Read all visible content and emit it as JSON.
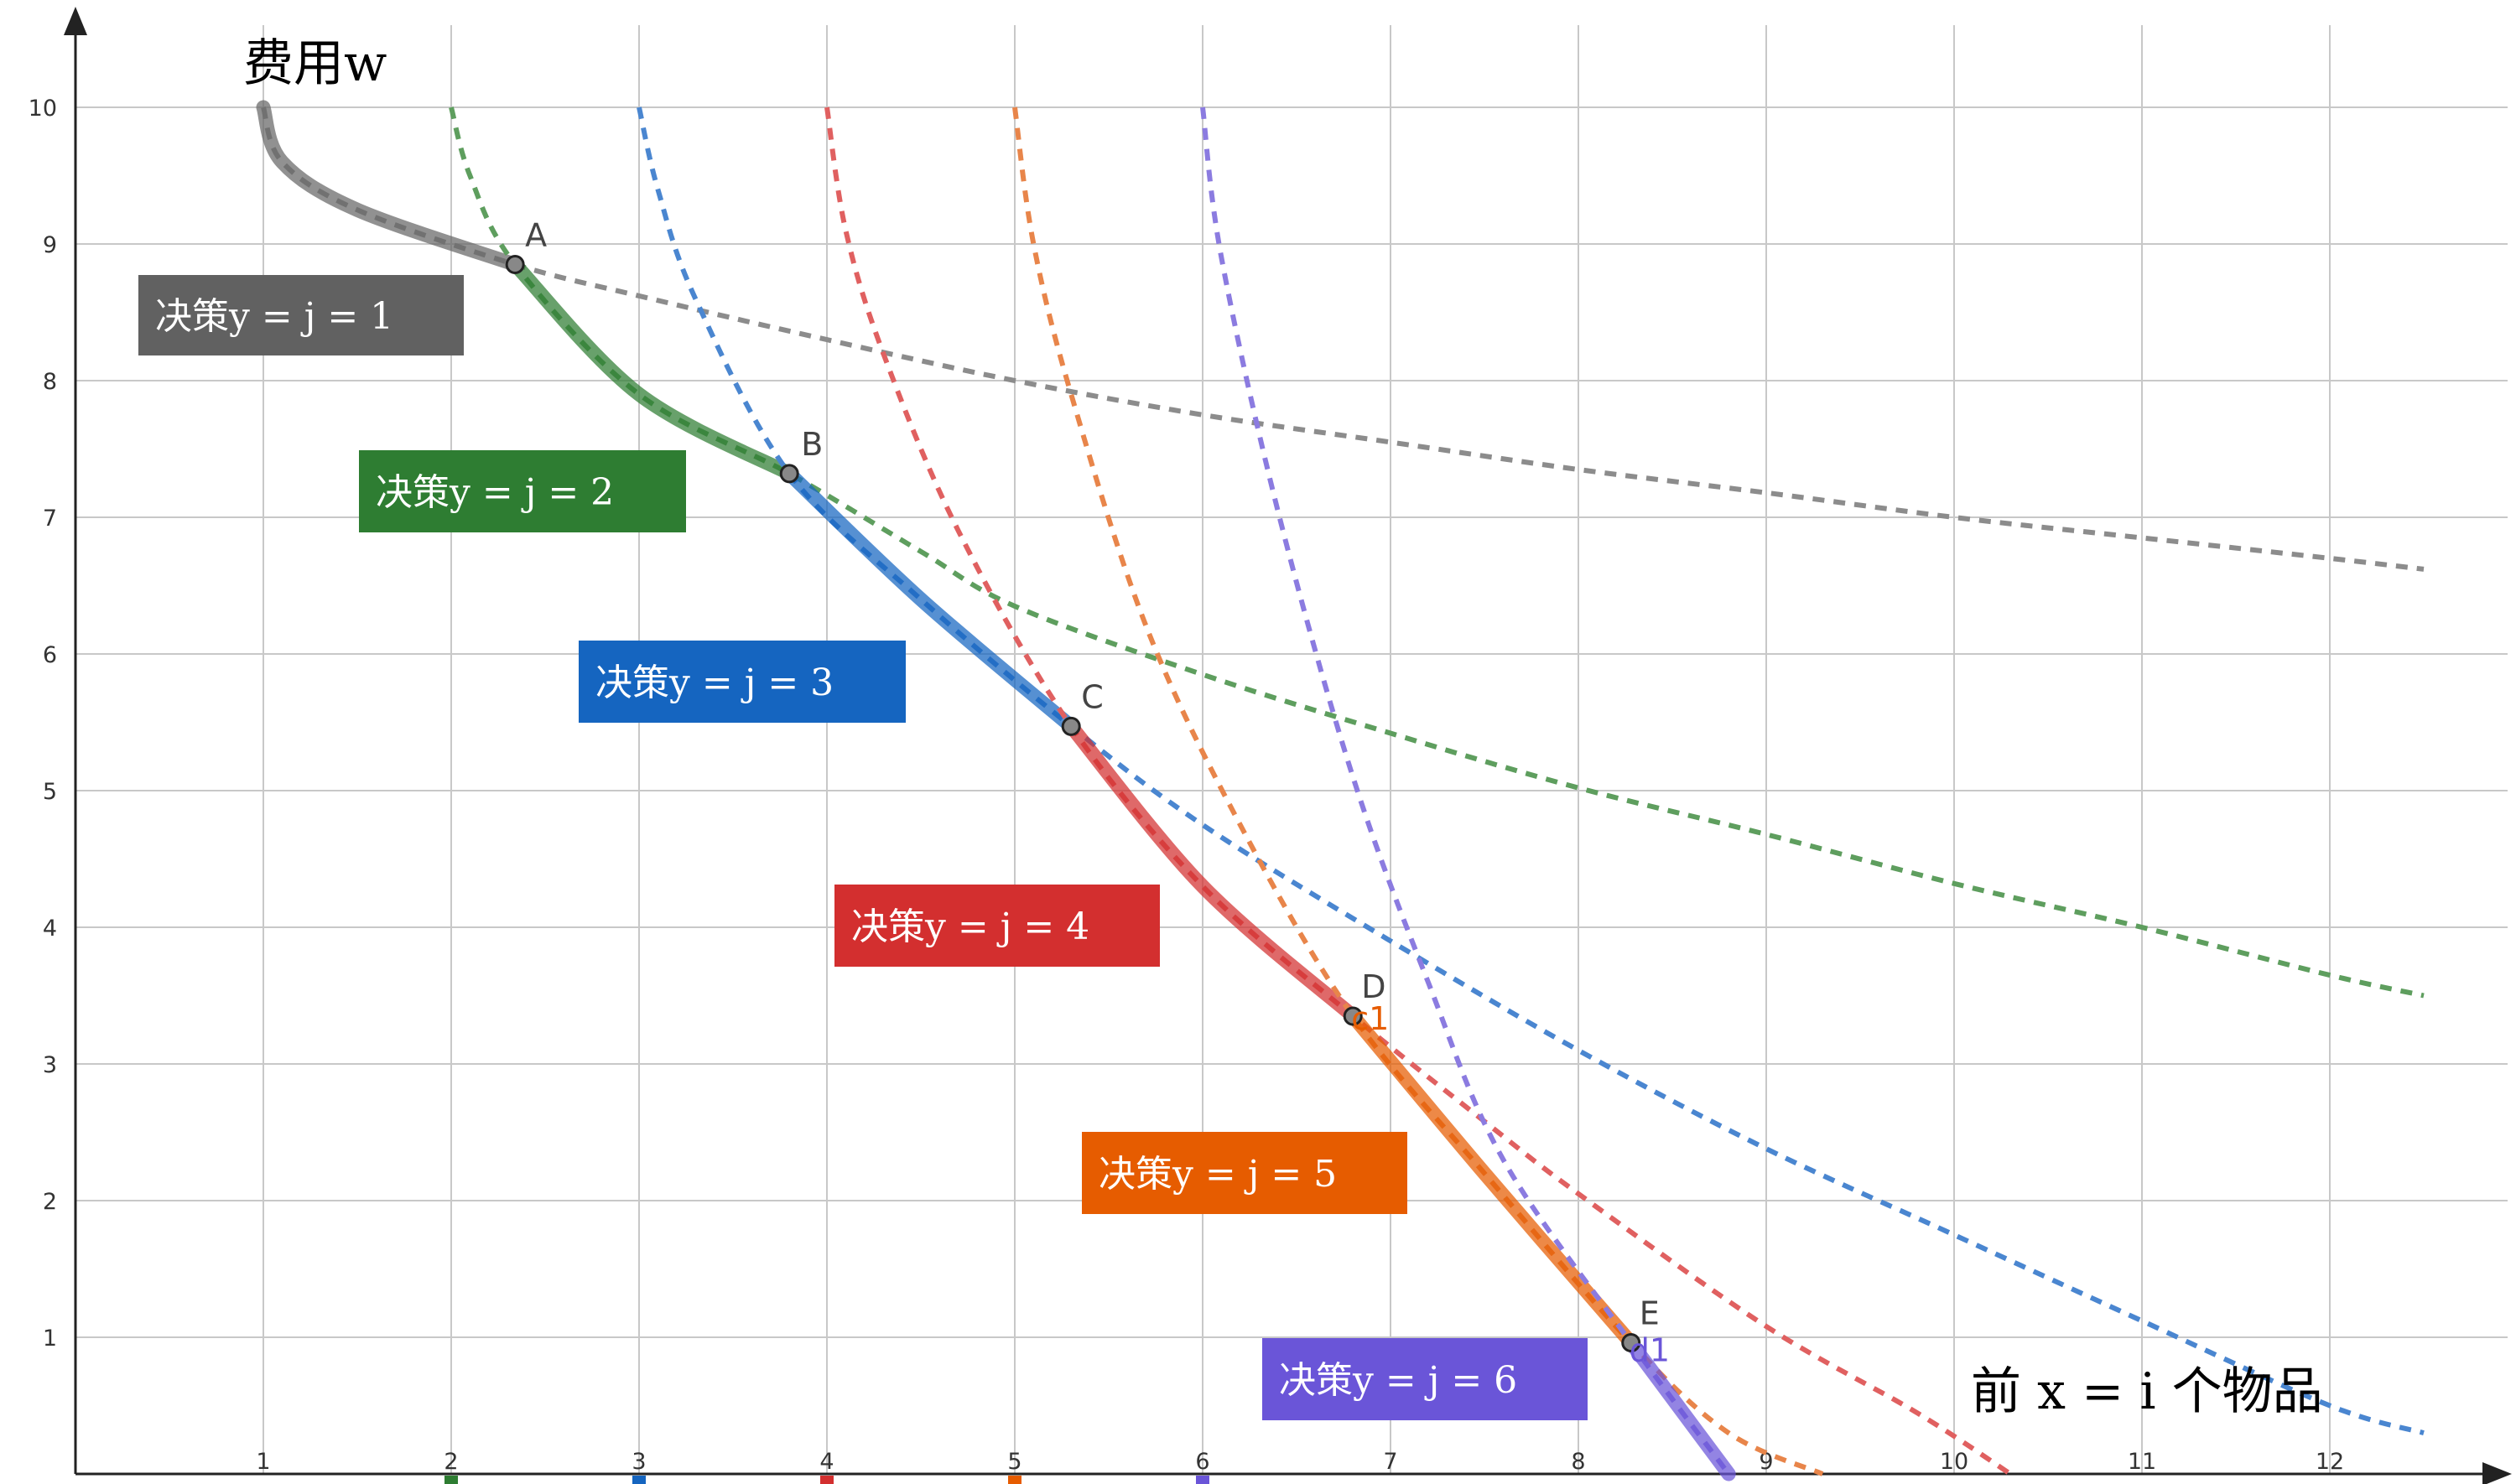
{
  "chart_data": {
    "type": "line",
    "y_axis_title": "费用w",
    "x_axis_title": "前 x = i 个物品",
    "xlim": [
      -1,
      12.6
    ],
    "ylim": [
      0,
      10.5
    ],
    "x_ticks": [
      1,
      2,
      3,
      4,
      5,
      6,
      7,
      8,
      9,
      10,
      11,
      12
    ],
    "y_ticks": [
      1,
      2,
      3,
      4,
      5,
      6,
      7,
      8,
      9,
      10
    ],
    "grid": true,
    "series": [
      {
        "name": "决策y = j = 1",
        "j": 1,
        "color": "#666666",
        "dash_color": "#8c8c8c",
        "dashed": {
          "x": [
            1,
            1.1,
            1.5,
            2.34,
            3,
            4,
            5,
            6,
            7,
            8,
            9,
            10,
            11,
            12,
            12.5
          ],
          "y": [
            10,
            9.6,
            9.25,
            8.85,
            8.62,
            8.3,
            8.0,
            7.75,
            7.55,
            7.35,
            7.18,
            7.0,
            6.85,
            6.7,
            6.62
          ]
        },
        "solid_range": [
          1,
          2.34
        ]
      },
      {
        "name": "决策y = j = 2",
        "j": 2,
        "color": "#2e7d32",
        "dash_color": "#5e9e5e",
        "dashed": {
          "x": [
            2,
            2.1,
            2.34,
            3,
            3.8,
            4.5,
            5,
            6,
            7,
            8,
            9,
            10,
            11,
            12,
            12.5
          ],
          "y": [
            10,
            9.5,
            8.85,
            7.9,
            7.32,
            6.75,
            6.35,
            5.85,
            5.42,
            5.02,
            4.68,
            4.32,
            4.0,
            3.65,
            3.5
          ]
        },
        "solid_range": [
          2.34,
          3.8
        ]
      },
      {
        "name": "决策y = j = 3",
        "j": 3,
        "color": "#1565c0",
        "dash_color": "#4a86d0",
        "dashed": {
          "x": [
            3,
            3.1,
            3.3,
            3.8,
            4.5,
            5.3,
            6,
            7,
            8,
            9,
            10,
            11,
            12,
            12.5
          ],
          "y": [
            10,
            9.4,
            8.6,
            7.32,
            6.4,
            5.47,
            4.75,
            3.9,
            3.1,
            2.38,
            1.75,
            1.12,
            0.5,
            0.3
          ]
        },
        "solid_range": [
          3.8,
          5.3
        ]
      },
      {
        "name": "决策y = j = 4",
        "j": 4,
        "color": "#d32f2f",
        "dash_color": "#e06060",
        "dashed": {
          "x": [
            4,
            4.1,
            4.3,
            4.7,
            5.3,
            6,
            6.8,
            7.5,
            8,
            9,
            9.8,
            10.3
          ],
          "y": [
            10,
            9.1,
            8.2,
            6.9,
            5.47,
            4.3,
            3.35,
            2.58,
            2.05,
            1.08,
            0.45,
            0.0
          ]
        },
        "solid_range": [
          5.3,
          6.8
        ]
      },
      {
        "name": "决策y = j = 5",
        "j": 5,
        "color": "#e65c00",
        "dash_color": "#e8854a",
        "dashed": {
          "x": [
            5,
            5.1,
            5.3,
            5.7,
            6.2,
            6.8,
            7.5,
            8.28,
            8.8,
            9.3
          ],
          "y": [
            10,
            9.0,
            7.9,
            6.2,
            4.75,
            3.35,
            2.2,
            0.96,
            0.3,
            0.0
          ]
        },
        "solid_range": [
          6.8,
          8.28
        ]
      },
      {
        "name": "决策y = j = 6",
        "j": 6,
        "color": "#6a55d8",
        "dash_color": "#8b7be0",
        "dashed": {
          "x": [
            6,
            6.1,
            6.4,
            6.8,
            7.2,
            7.6,
            8.28,
            8.8
          ],
          "y": [
            10,
            8.9,
            7.05,
            5.1,
            3.6,
            2.3,
            0.96,
            0.0
          ]
        },
        "solid_range": [
          8.28,
          8.8
        ]
      }
    ],
    "points": [
      {
        "label": "A",
        "x": 2.34,
        "y": 8.85
      },
      {
        "label": "B",
        "x": 3.8,
        "y": 7.32
      },
      {
        "label": "C",
        "x": 5.3,
        "y": 5.47
      },
      {
        "label": "D",
        "x": 6.8,
        "y": 3.35
      },
      {
        "label": "E",
        "x": 8.28,
        "y": 0.96
      }
    ],
    "extra_labels": [
      {
        "text": "c1",
        "color": "#e65c00"
      },
      {
        "text": "d1",
        "color": "#6a55d8"
      }
    ],
    "badges": [
      {
        "text": "决策y = j = 1",
        "color": "#616161"
      },
      {
        "text": "决策y = j = 2",
        "color": "#2e7d32"
      },
      {
        "text": "决策y = j = 3",
        "color": "#1565c0"
      },
      {
        "text": "决策y = j = 4",
        "color": "#d32f2f"
      },
      {
        "text": "决策y = j = 5",
        "color": "#e65c00"
      },
      {
        "text": "决策y = j = 6",
        "color": "#6a55d8"
      }
    ]
  }
}
